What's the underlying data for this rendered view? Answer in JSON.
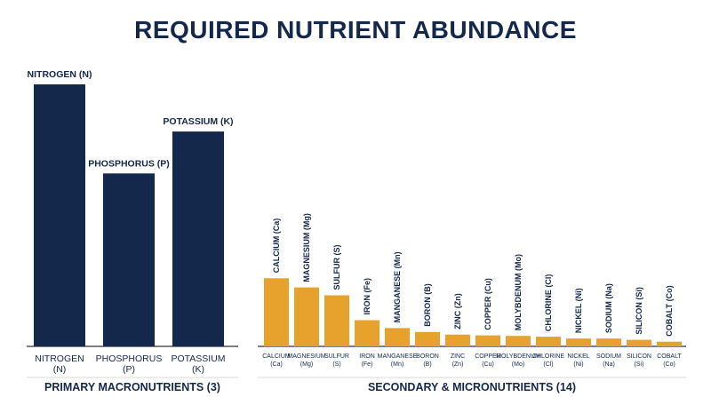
{
  "title": "REQUIRED NUTRIENT ABUNDANCE",
  "colors": {
    "primary": "#14284b",
    "secondary": "#e6a22d",
    "axis": "#333333"
  },
  "chart_data": [
    {
      "type": "bar",
      "group_label": "PRIMARY MACRONUTRIENTS (3)",
      "color": "#14284b",
      "categories": [
        {
          "label": "NITROGEN (N)",
          "axis_label": [
            "NITROGEN",
            "(N)"
          ],
          "value": 100
        },
        {
          "label": "PHOSPHORUS (P)",
          "axis_label": [
            "PHOSPHORUS",
            "(P)"
          ],
          "value": 66
        },
        {
          "label": "POTASSIUM (K)",
          "axis_label": [
            "POTASSIUM",
            "(K)"
          ],
          "value": 82
        }
      ]
    },
    {
      "type": "bar",
      "group_label": "SECONDARY & MICRONUTRIENTS (14)",
      "color": "#e6a22d",
      "categories": [
        {
          "label": "CALCIUM (Ca)",
          "axis_label": [
            "CALCIUM",
            "(Ca)"
          ],
          "value": 26
        },
        {
          "label": "MAGNESIUM (Mg)",
          "axis_label": [
            "MAGNESIUM",
            "(Mg)"
          ],
          "value": 22.5
        },
        {
          "label": "SULFUR (S)",
          "axis_label": [
            "SULFUR",
            "(S)"
          ],
          "value": 19.5
        },
        {
          "label": "IRON (Fe)",
          "axis_label": [
            "IRON",
            "(Fe)"
          ],
          "value": 10
        },
        {
          "label": "MANGANESE (Mn)",
          "axis_label": [
            "MANGANESE",
            "(Mn)"
          ],
          "value": 7
        },
        {
          "label": "BORON (B)",
          "axis_label": [
            "BORON",
            "(B)"
          ],
          "value": 5.5
        },
        {
          "label": "ZINC (Zn)",
          "axis_label": [
            "ZINC",
            "(Zn)"
          ],
          "value": 4.5
        },
        {
          "label": "COPPER (Cu)",
          "axis_label": [
            "COPPER",
            "(Cu)"
          ],
          "value": 4.2
        },
        {
          "label": "MOLYBDENUM (Mo)",
          "axis_label": [
            "MOLYBDENUM",
            "(Mo)"
          ],
          "value": 4
        },
        {
          "label": "CHLORINE (Cl)",
          "axis_label": [
            "CHLORINE",
            "(Cl)"
          ],
          "value": 3.7
        },
        {
          "label": "NICKEL (Ni)",
          "axis_label": [
            "NICKEL",
            "(Ni)"
          ],
          "value": 3
        },
        {
          "label": "SODIUM (Na)",
          "axis_label": [
            "SODIUM",
            "(Na)"
          ],
          "value": 3
        },
        {
          "label": "SILICON (Si)",
          "axis_label": [
            "SILICON",
            "(Si)"
          ],
          "value": 2.5
        },
        {
          "label": "COBALT (Co)",
          "axis_label": [
            "COBALT",
            "(Co)"
          ],
          "value": 1.8
        }
      ]
    }
  ]
}
